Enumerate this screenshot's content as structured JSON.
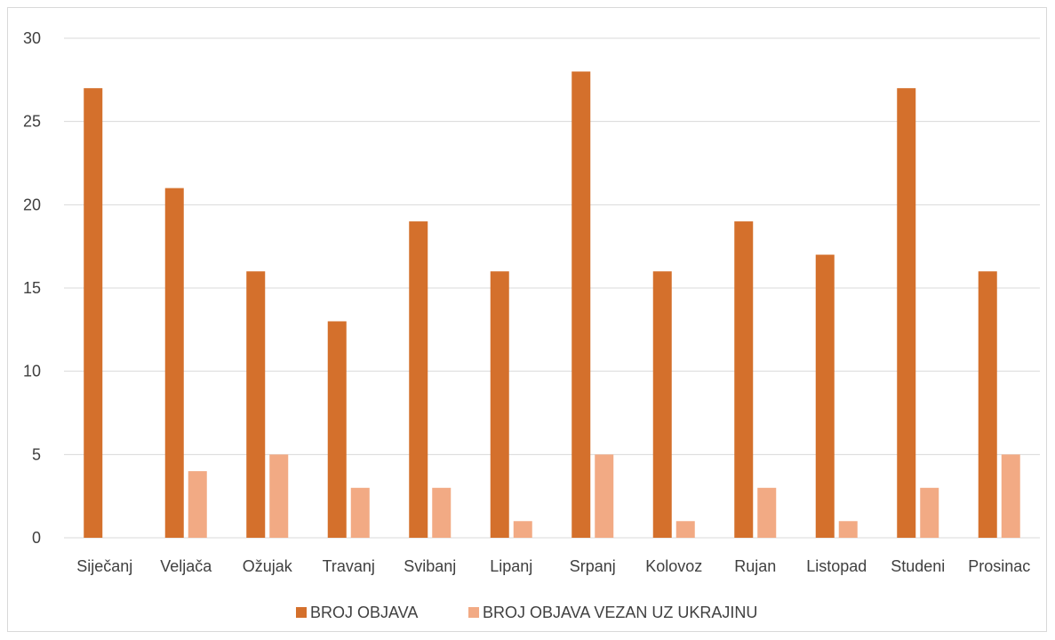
{
  "chart_data": {
    "type": "bar",
    "title": "",
    "xlabel": "",
    "ylabel": "",
    "categories": [
      "Siječanj",
      "Veljača",
      "Ožujak",
      "Travanj",
      "Svibanj",
      "Lipanj",
      "Srpanj",
      "Kolovoz",
      "Rujan",
      "Listopad",
      "Studeni",
      "Prosinac"
    ],
    "series": [
      {
        "name": "BROJ OBJAVA",
        "color": "#d4702c",
        "values": [
          27,
          21,
          16,
          13,
          19,
          16,
          28,
          16,
          19,
          17,
          27,
          16
        ]
      },
      {
        "name": "BROJ OBJAVA VEZAN UZ UKRAJINU",
        "color": "#f2aa84",
        "values": [
          0,
          4,
          5,
          3,
          3,
          1,
          5,
          1,
          3,
          1,
          3,
          5
        ]
      }
    ],
    "ylim": [
      0,
      30
    ],
    "yticks": [
      0,
      5,
      10,
      15,
      20,
      25,
      30
    ],
    "grid": true,
    "gridline_color": "#d9d9d9",
    "legend_position": "bottom"
  }
}
